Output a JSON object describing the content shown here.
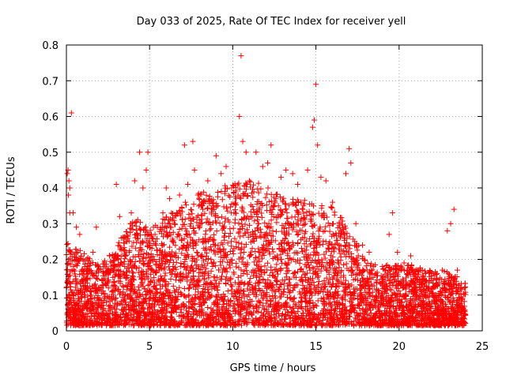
{
  "chart_data": {
    "type": "scatter",
    "title": "Day 033 of 2025, Rate Of TEC Index for receiver yell",
    "xlabel": "GPS time / hours",
    "ylabel": "ROTI / TECUs",
    "xlim": [
      0,
      25
    ],
    "ylim": [
      0,
      0.8
    ],
    "xticks": [
      0,
      5,
      10,
      15,
      20,
      25
    ],
    "yticks": [
      0,
      0.1,
      0.2,
      0.3,
      0.4,
      0.5,
      0.6,
      0.7,
      0.8
    ],
    "xtick_labels": [
      "0",
      "5",
      "10",
      "15",
      "20",
      "25"
    ],
    "ytick_labels": [
      "0",
      "0.1",
      "0.2",
      "0.3",
      "0.4",
      "0.5",
      "0.6",
      "0.7",
      "0.8"
    ],
    "grid": true,
    "marker": "+",
    "color": "#ff0000",
    "series": [
      {
        "points": [
          [
            0.05,
            0.44
          ],
          [
            0.1,
            0.45
          ],
          [
            0.15,
            0.42
          ],
          [
            0.2,
            0.4
          ],
          [
            0.12,
            0.38
          ],
          [
            0.3,
            0.61
          ],
          [
            0.2,
            0.33
          ],
          [
            0.4,
            0.33
          ],
          [
            0.6,
            0.29
          ],
          [
            0.8,
            0.27
          ],
          [
            1.0,
            0.2
          ],
          [
            1.3,
            0.16
          ],
          [
            1.6,
            0.22
          ],
          [
            1.8,
            0.29
          ],
          [
            2.1,
            0.12
          ],
          [
            2.4,
            0.08
          ],
          [
            2.7,
            0.09
          ],
          [
            3.0,
            0.41
          ],
          [
            3.2,
            0.32
          ],
          [
            3.4,
            0.26
          ],
          [
            3.6,
            0.22
          ],
          [
            3.9,
            0.33
          ],
          [
            4.1,
            0.42
          ],
          [
            4.4,
            0.5
          ],
          [
            4.6,
            0.4
          ],
          [
            4.8,
            0.45
          ],
          [
            4.9,
            0.5
          ],
          [
            5.1,
            0.27
          ],
          [
            5.4,
            0.24
          ],
          [
            5.8,
            0.33
          ],
          [
            6.0,
            0.4
          ],
          [
            6.2,
            0.37
          ],
          [
            6.5,
            0.3
          ],
          [
            6.8,
            0.38
          ],
          [
            7.1,
            0.52
          ],
          [
            7.3,
            0.41
          ],
          [
            7.6,
            0.53
          ],
          [
            7.7,
            0.45
          ],
          [
            7.9,
            0.38
          ],
          [
            8.2,
            0.34
          ],
          [
            8.5,
            0.42
          ],
          [
            8.8,
            0.35
          ],
          [
            9.0,
            0.49
          ],
          [
            9.3,
            0.44
          ],
          [
            9.6,
            0.46
          ],
          [
            9.9,
            0.33
          ],
          [
            10.2,
            0.37
          ],
          [
            10.4,
            0.6
          ],
          [
            10.5,
            0.77
          ],
          [
            10.6,
            0.53
          ],
          [
            10.8,
            0.5
          ],
          [
            11.0,
            0.42
          ],
          [
            11.4,
            0.5
          ],
          [
            11.8,
            0.46
          ],
          [
            12.1,
            0.47
          ],
          [
            12.3,
            0.52
          ],
          [
            12.6,
            0.37
          ],
          [
            12.9,
            0.43
          ],
          [
            13.2,
            0.45
          ],
          [
            13.6,
            0.44
          ],
          [
            13.9,
            0.41
          ],
          [
            14.2,
            0.34
          ],
          [
            14.5,
            0.45
          ],
          [
            14.8,
            0.57
          ],
          [
            14.9,
            0.59
          ],
          [
            15.0,
            0.69
          ],
          [
            15.1,
            0.52
          ],
          [
            15.3,
            0.43
          ],
          [
            15.6,
            0.42
          ],
          [
            16.0,
            0.36
          ],
          [
            16.4,
            0.3
          ],
          [
            16.8,
            0.44
          ],
          [
            17.0,
            0.51
          ],
          [
            17.1,
            0.47
          ],
          [
            17.4,
            0.3
          ],
          [
            17.8,
            0.24
          ],
          [
            18.2,
            0.22
          ],
          [
            18.6,
            0.16
          ],
          [
            19.0,
            0.18
          ],
          [
            19.4,
            0.27
          ],
          [
            19.6,
            0.33
          ],
          [
            19.9,
            0.22
          ],
          [
            20.3,
            0.19
          ],
          [
            20.7,
            0.21
          ],
          [
            21.1,
            0.15
          ],
          [
            21.4,
            0.17
          ],
          [
            21.8,
            0.14
          ],
          [
            22.2,
            0.13
          ],
          [
            22.6,
            0.17
          ],
          [
            22.9,
            0.28
          ],
          [
            23.1,
            0.3
          ],
          [
            23.3,
            0.34
          ],
          [
            23.5,
            0.17
          ],
          [
            23.8,
            0.09
          ]
        ]
      }
    ]
  }
}
